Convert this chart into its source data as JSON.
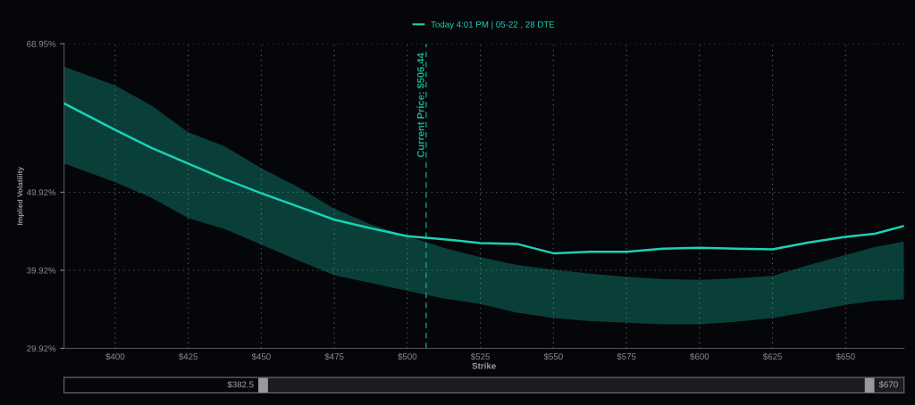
{
  "chart_data": {
    "type": "line",
    "xlabel": "Strike",
    "ylabel": "Implied Volatility",
    "x": [
      382.5,
      400,
      412.5,
      425,
      437.5,
      450,
      462.5,
      475,
      487.5,
      500,
      512.5,
      525,
      537.5,
      550,
      562.5,
      575,
      587.5,
      600,
      612.5,
      625,
      637.5,
      650,
      660,
      670
    ],
    "series": [
      {
        "name": "Today 4:01 PM | 05-22 , 28 DTE",
        "color": "#19d3b5",
        "values": [
          61.3,
          57.9,
          55.6,
          53.6,
          51.6,
          49.8,
          48.1,
          46.4,
          45.3,
          44.3,
          43.9,
          43.4,
          43.3,
          42.1,
          42.3,
          42.3,
          42.7,
          42.8,
          42.7,
          42.6,
          43.5,
          44.2,
          44.6,
          45.6
        ],
        "upper": [
          66.0,
          63.6,
          61.0,
          57.6,
          55.8,
          53.0,
          50.6,
          47.8,
          45.8,
          44.3,
          42.8,
          41.6,
          40.6,
          40.0,
          39.5,
          39.1,
          38.8,
          38.7,
          38.9,
          39.2,
          40.6,
          41.9,
          42.9,
          43.6
        ],
        "lower": [
          53.6,
          51.2,
          49.2,
          46.6,
          45.2,
          43.2,
          41.2,
          39.3,
          38.3,
          37.3,
          36.3,
          35.6,
          34.5,
          33.8,
          33.4,
          33.2,
          33.0,
          33.0,
          33.3,
          33.8,
          34.6,
          35.5,
          36.0,
          36.2
        ]
      }
    ],
    "xlim": [
      382.5,
      670
    ],
    "xticks": [
      {
        "value": 400,
        "label": "$400"
      },
      {
        "value": 425,
        "label": "$425"
      },
      {
        "value": 450,
        "label": "$450"
      },
      {
        "value": 475,
        "label": "$475"
      },
      {
        "value": 500,
        "label": "$500"
      },
      {
        "value": 525,
        "label": "$525"
      },
      {
        "value": 550,
        "label": "$550"
      },
      {
        "value": 575,
        "label": "$575"
      },
      {
        "value": 600,
        "label": "$600"
      },
      {
        "value": 625,
        "label": "$625"
      },
      {
        "value": 650,
        "label": "$650"
      }
    ],
    "ylim": [
      29.92,
      68.95
    ],
    "yticks": [
      {
        "value": 29.92,
        "label": "29.92%"
      },
      {
        "value": 39.92,
        "label": "39.92%"
      },
      {
        "value": 49.92,
        "label": "49.92%"
      },
      {
        "value": 68.95,
        "label": "68.95%"
      }
    ],
    "ref_lines": [
      {
        "axis": "x",
        "value": 506.44,
        "label": "Current Price: $506.44",
        "color": "#19a88f",
        "line_style": "dashed"
      }
    ],
    "annotations": [
      "$382.5",
      "$670"
    ],
    "grid": true,
    "legend": "top",
    "marker": "none",
    "line_style": "solid"
  }
}
